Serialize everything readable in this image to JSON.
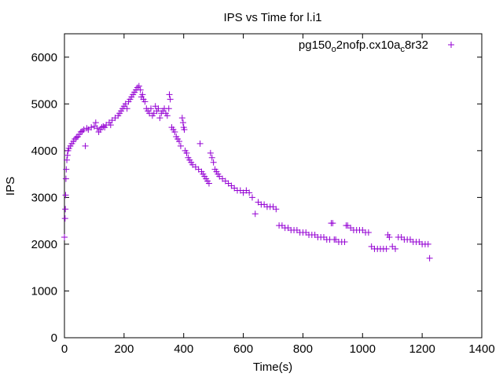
{
  "chart_data": {
    "type": "scatter",
    "title": "IPS vs Time for l.i1",
    "xlabel": "Time(s)",
    "ylabel": "IPS",
    "xlim": [
      0,
      1400
    ],
    "ylim": [
      0,
      6500
    ],
    "xticks": [
      0,
      200,
      400,
      600,
      800,
      1000,
      1200,
      1400
    ],
    "yticks": [
      0,
      1000,
      2000,
      3000,
      4000,
      5000,
      6000
    ],
    "grid": false,
    "legend_position": "top-right",
    "marker": "plus",
    "color": "#9400d3",
    "series": [
      {
        "name_parts": [
          "pg150",
          "o",
          "2nofp.cx10a",
          "c",
          "8r32"
        ],
        "points": [
          [
            0,
            2150
          ],
          [
            2,
            2550
          ],
          [
            3,
            2750
          ],
          [
            4,
            3050
          ],
          [
            5,
            3400
          ],
          [
            6,
            3600
          ],
          [
            8,
            3800
          ],
          [
            10,
            3900
          ],
          [
            12,
            4000
          ],
          [
            15,
            4050
          ],
          [
            20,
            4100
          ],
          [
            25,
            4150
          ],
          [
            30,
            4200
          ],
          [
            35,
            4250
          ],
          [
            40,
            4280
          ],
          [
            45,
            4300
          ],
          [
            50,
            4350
          ],
          [
            55,
            4400
          ],
          [
            60,
            4420
          ],
          [
            65,
            4450
          ],
          [
            70,
            4100
          ],
          [
            75,
            4480
          ],
          [
            80,
            4450
          ],
          [
            90,
            4500
          ],
          [
            100,
            4520
          ],
          [
            105,
            4600
          ],
          [
            110,
            4480
          ],
          [
            115,
            4400
          ],
          [
            120,
            4450
          ],
          [
            125,
            4500
          ],
          [
            130,
            4520
          ],
          [
            135,
            4500
          ],
          [
            140,
            4550
          ],
          [
            150,
            4600
          ],
          [
            155,
            4550
          ],
          [
            160,
            4650
          ],
          [
            170,
            4700
          ],
          [
            180,
            4750
          ],
          [
            185,
            4800
          ],
          [
            190,
            4850
          ],
          [
            195,
            4900
          ],
          [
            200,
            4950
          ],
          [
            205,
            5000
          ],
          [
            210,
            4900
          ],
          [
            215,
            5050
          ],
          [
            220,
            5100
          ],
          [
            225,
            5150
          ],
          [
            230,
            5200
          ],
          [
            235,
            5250
          ],
          [
            240,
            5300
          ],
          [
            245,
            5350
          ],
          [
            250,
            5380
          ],
          [
            255,
            5300
          ],
          [
            258,
            5150
          ],
          [
            262,
            5200
          ],
          [
            265,
            5100
          ],
          [
            270,
            5050
          ],
          [
            275,
            4900
          ],
          [
            280,
            4850
          ],
          [
            285,
            4800
          ],
          [
            290,
            4900
          ],
          [
            295,
            4750
          ],
          [
            300,
            4800
          ],
          [
            305,
            4950
          ],
          [
            310,
            4850
          ],
          [
            315,
            4900
          ],
          [
            320,
            4700
          ],
          [
            325,
            4800
          ],
          [
            330,
            4850
          ],
          [
            335,
            4900
          ],
          [
            340,
            4800
          ],
          [
            345,
            4750
          ],
          [
            350,
            4900
          ],
          [
            352,
            5200
          ],
          [
            355,
            5100
          ],
          [
            360,
            4500
          ],
          [
            365,
            4450
          ],
          [
            370,
            4400
          ],
          [
            375,
            4300
          ],
          [
            380,
            4250
          ],
          [
            385,
            4200
          ],
          [
            390,
            4100
          ],
          [
            395,
            4700
          ],
          [
            398,
            4600
          ],
          [
            400,
            4500
          ],
          [
            402,
            4450
          ],
          [
            405,
            4000
          ],
          [
            410,
            3950
          ],
          [
            415,
            3850
          ],
          [
            420,
            3800
          ],
          [
            425,
            3750
          ],
          [
            430,
            3700
          ],
          [
            440,
            3650
          ],
          [
            450,
            3600
          ],
          [
            455,
            4150
          ],
          [
            460,
            3550
          ],
          [
            465,
            3500
          ],
          [
            470,
            3450
          ],
          [
            475,
            3400
          ],
          [
            480,
            3350
          ],
          [
            485,
            3300
          ],
          [
            490,
            3950
          ],
          [
            495,
            3850
          ],
          [
            500,
            3750
          ],
          [
            505,
            3600
          ],
          [
            510,
            3550
          ],
          [
            515,
            3500
          ],
          [
            520,
            3450
          ],
          [
            530,
            3400
          ],
          [
            540,
            3350
          ],
          [
            550,
            3300
          ],
          [
            560,
            3250
          ],
          [
            570,
            3200
          ],
          [
            580,
            3150
          ],
          [
            590,
            3150
          ],
          [
            600,
            3100
          ],
          [
            610,
            3150
          ],
          [
            620,
            3100
          ],
          [
            630,
            3000
          ],
          [
            640,
            2650
          ],
          [
            650,
            2900
          ],
          [
            660,
            2850
          ],
          [
            670,
            2850
          ],
          [
            680,
            2800
          ],
          [
            690,
            2800
          ],
          [
            700,
            2800
          ],
          [
            710,
            2750
          ],
          [
            720,
            2400
          ],
          [
            730,
            2400
          ],
          [
            740,
            2350
          ],
          [
            750,
            2350
          ],
          [
            760,
            2300
          ],
          [
            770,
            2300
          ],
          [
            780,
            2300
          ],
          [
            790,
            2250
          ],
          [
            800,
            2250
          ],
          [
            810,
            2250
          ],
          [
            820,
            2200
          ],
          [
            830,
            2200
          ],
          [
            840,
            2200
          ],
          [
            850,
            2150
          ],
          [
            860,
            2150
          ],
          [
            870,
            2150
          ],
          [
            880,
            2100
          ],
          [
            890,
            2100
          ],
          [
            895,
            2450
          ],
          [
            900,
            2450
          ],
          [
            905,
            2100
          ],
          [
            910,
            2100
          ],
          [
            920,
            2050
          ],
          [
            930,
            2050
          ],
          [
            940,
            2050
          ],
          [
            945,
            2400
          ],
          [
            950,
            2400
          ],
          [
            960,
            2350
          ],
          [
            970,
            2300
          ],
          [
            980,
            2300
          ],
          [
            990,
            2300
          ],
          [
            1000,
            2300
          ],
          [
            1010,
            2250
          ],
          [
            1020,
            2250
          ],
          [
            1030,
            1950
          ],
          [
            1040,
            1900
          ],
          [
            1050,
            1900
          ],
          [
            1060,
            1900
          ],
          [
            1070,
            1900
          ],
          [
            1080,
            1900
          ],
          [
            1085,
            2200
          ],
          [
            1090,
            2150
          ],
          [
            1100,
            1950
          ],
          [
            1110,
            1900
          ],
          [
            1120,
            2150
          ],
          [
            1130,
            2150
          ],
          [
            1140,
            2100
          ],
          [
            1150,
            2100
          ],
          [
            1160,
            2100
          ],
          [
            1170,
            2050
          ],
          [
            1180,
            2050
          ],
          [
            1190,
            2050
          ],
          [
            1200,
            2000
          ],
          [
            1210,
            2000
          ],
          [
            1220,
            2000
          ],
          [
            1225,
            1700
          ]
        ]
      }
    ]
  }
}
